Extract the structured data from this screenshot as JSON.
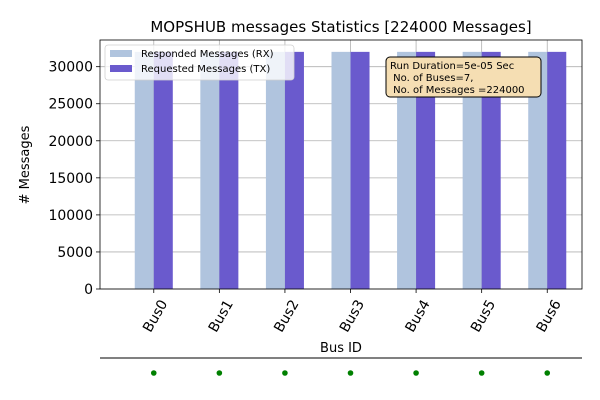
{
  "chart_data": {
    "type": "bar",
    "title": "MOPSHUB messages Statistics [224000 Messages]",
    "xlabel": "Bus ID",
    "ylabel": "# Messages",
    "categories": [
      "Bus0",
      "Bus1",
      "Bus2",
      "Bus3",
      "Bus4",
      "Bus5",
      "Bus6"
    ],
    "series": [
      {
        "name": "Responded Messages (RX)",
        "values": [
          32000,
          32000,
          32000,
          32000,
          32000,
          32000,
          32000
        ],
        "color": "#b0c4de"
      },
      {
        "name": "Requested Messages (TX)",
        "values": [
          32000,
          32000,
          32000,
          32000,
          32000,
          32000,
          32000
        ],
        "color": "#6a5acd"
      }
    ],
    "ylim": [
      0,
      33600
    ],
    "yticks": [
      0,
      5000,
      10000,
      15000,
      20000,
      25000,
      30000
    ],
    "grid": true,
    "legend_position": "top-left",
    "annotation": {
      "lines": [
        "Run Duration=5e-05 Sec",
        " No. of Buses=7,",
        " No. of Messages =224000"
      ],
      "bg_color": "#f5deb3"
    },
    "marker_color": "#008000"
  }
}
